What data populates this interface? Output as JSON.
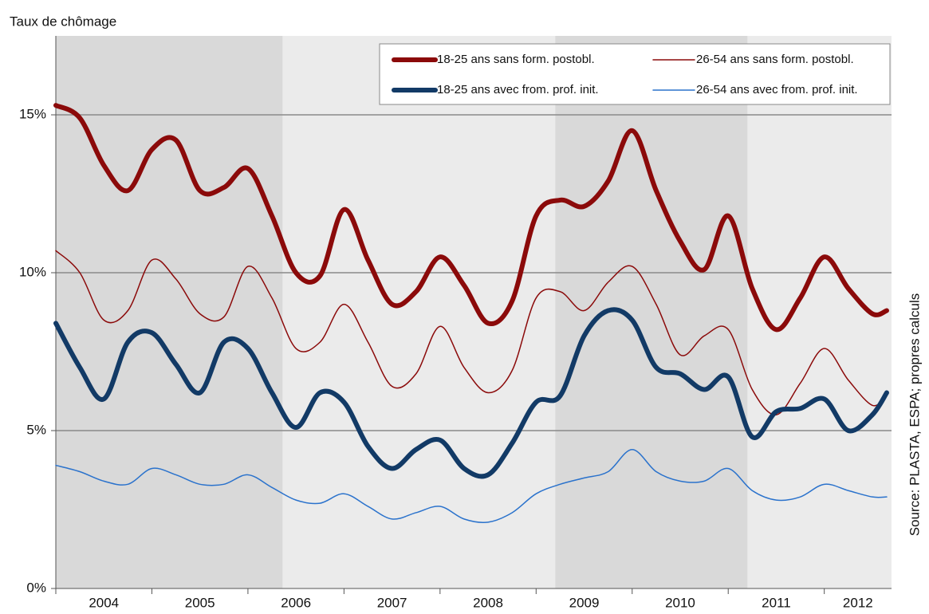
{
  "chart_data": {
    "type": "line",
    "y_axis_label": "Taux de chômage",
    "source": "Source: PLASTA, ESPA; propres calculs",
    "x": [
      2004,
      2004.25,
      2004.5,
      2004.75,
      2005,
      2005.25,
      2005.5,
      2005.75,
      2006,
      2006.25,
      2006.5,
      2006.75,
      2007,
      2007.25,
      2007.5,
      2007.75,
      2008,
      2008.25,
      2008.5,
      2008.75,
      2009,
      2009.25,
      2009.5,
      2009.75,
      2010,
      2010.25,
      2010.5,
      2010.75,
      2011,
      2011.25,
      2011.5,
      2011.75,
      2012,
      2012.25,
      2012.5,
      2012.65
    ],
    "series": [
      {
        "name": "18-25 ans sans form. postobl.",
        "color": "#8b0a0a",
        "width": 6,
        "values": [
          15.3,
          14.9,
          13.4,
          12.6,
          13.9,
          14.2,
          12.6,
          12.7,
          13.3,
          11.8,
          10.0,
          9.9,
          12.0,
          10.4,
          9.0,
          9.4,
          10.5,
          9.6,
          8.4,
          9.1,
          11.8,
          12.3,
          12.1,
          12.9,
          14.5,
          12.6,
          11.0,
          10.1,
          11.8,
          9.5,
          8.2,
          9.2,
          10.5,
          9.5,
          8.7,
          8.8
        ]
      },
      {
        "name": "26-54 ans sans form. postobl.",
        "color": "#8b0a0a",
        "width": 1.5,
        "values": [
          10.7,
          10.0,
          8.5,
          8.8,
          10.4,
          9.8,
          8.7,
          8.6,
          10.2,
          9.2,
          7.6,
          7.8,
          9.0,
          7.8,
          6.4,
          6.8,
          8.3,
          7.0,
          6.2,
          6.9,
          9.2,
          9.4,
          8.8,
          9.7,
          10.2,
          9.0,
          7.4,
          8.0,
          8.2,
          6.3,
          5.5,
          6.5,
          7.6,
          6.6,
          5.8,
          6.1
        ]
      },
      {
        "name": "18-25 ans avec from. prof. init.",
        "color": "#123a66",
        "width": 6,
        "values": [
          8.4,
          7.0,
          6.0,
          7.8,
          8.1,
          7.1,
          6.2,
          7.8,
          7.6,
          6.2,
          5.1,
          6.2,
          5.9,
          4.5,
          3.8,
          4.4,
          4.7,
          3.8,
          3.6,
          4.6,
          5.9,
          6.1,
          8.0,
          8.8,
          8.5,
          7.0,
          6.8,
          6.3,
          6.7,
          4.8,
          5.6,
          5.7,
          6.0,
          5.0,
          5.5,
          6.2
        ]
      },
      {
        "name": "26-54 ans avec from. prof. init.",
        "color": "#2a72cc",
        "width": 1.5,
        "values": [
          3.9,
          3.7,
          3.4,
          3.3,
          3.8,
          3.6,
          3.3,
          3.3,
          3.6,
          3.2,
          2.8,
          2.7,
          3.0,
          2.6,
          2.2,
          2.4,
          2.6,
          2.2,
          2.1,
          2.4,
          3.0,
          3.3,
          3.5,
          3.7,
          4.4,
          3.7,
          3.4,
          3.4,
          3.8,
          3.1,
          2.8,
          2.9,
          3.3,
          3.1,
          2.9,
          2.9
        ]
      }
    ],
    "xlim": [
      2004,
      2012.7
    ],
    "xticks": [
      2004,
      2005,
      2006,
      2007,
      2008,
      2009,
      2010,
      2011,
      2012
    ],
    "ylim": [
      0,
      17.5
    ],
    "yticks": [
      {
        "value": 0,
        "label": "0%"
      },
      {
        "value": 5,
        "label": "5%"
      },
      {
        "value": 10,
        "label": "10%"
      },
      {
        "value": 15,
        "label": "15%"
      }
    ],
    "grid": true,
    "plot_background": "#ebebeb",
    "shaded_periods": [
      {
        "from": 2004,
        "to": 2006.36,
        "color": "#d9d9d9"
      },
      {
        "from": 2009.2,
        "to": 2011.2,
        "color": "#d9d9d9"
      }
    ],
    "legend": "top-right"
  }
}
